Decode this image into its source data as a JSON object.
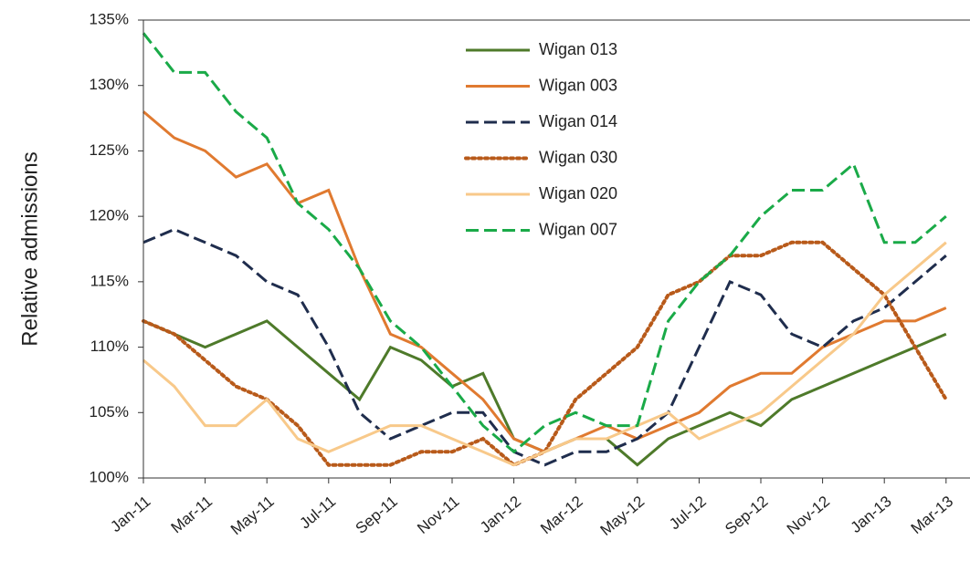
{
  "chart_data": {
    "type": "line",
    "y_label": "Relative admissions",
    "categories": [
      "Jan-11",
      null,
      "Mar-11",
      null,
      "May-11",
      null,
      "Jul-11",
      null,
      "Sep-11",
      null,
      "Nov-11",
      null,
      "Jan-12",
      null,
      "Mar-12",
      null,
      "May-12",
      null,
      "Jul-12",
      null,
      "Sep-12",
      null,
      "Nov-12",
      null,
      "Jan-13",
      null,
      "Mar-13"
    ],
    "series": [
      {
        "name": "Wigan 013",
        "color": "#4e7a2a",
        "dash": "solid",
        "values": [
          112,
          111,
          110,
          111,
          112,
          110,
          108,
          106,
          110,
          109,
          107,
          108,
          103,
          102,
          103,
          103,
          101,
          103,
          104,
          105,
          104,
          106,
          107,
          108,
          109,
          110,
          111
        ]
      },
      {
        "name": "Wigan 003",
        "color": "#e07a30",
        "dash": "solid",
        "values": [
          128,
          126,
          125,
          123,
          124,
          121,
          122,
          116,
          111,
          110,
          108,
          106,
          103,
          102,
          103,
          104,
          103,
          104,
          105,
          107,
          108,
          108,
          110,
          111,
          112,
          112,
          113
        ]
      },
      {
        "name": "Wigan 014",
        "color": "#1f2d4d",
        "dash": "dashed",
        "values": [
          118,
          119,
          118,
          117,
          115,
          114,
          110,
          105,
          103,
          104,
          105,
          105,
          102,
          101,
          102,
          102,
          103,
          105,
          110,
          115,
          114,
          111,
          110,
          112,
          113,
          115,
          117
        ]
      },
      {
        "name": "Wigan 030",
        "color": "#b85a1a",
        "dash": "dotted",
        "values": [
          112,
          111,
          109,
          107,
          106,
          104,
          101,
          101,
          101,
          102,
          102,
          103,
          101,
          102,
          106,
          108,
          110,
          114,
          115,
          117,
          117,
          118,
          118,
          116,
          114,
          110,
          106
        ]
      },
      {
        "name": "Wigan 020",
        "color": "#f8c98a",
        "dash": "solid",
        "values": [
          109,
          107,
          104,
          104,
          106,
          103,
          102,
          103,
          104,
          104,
          103,
          102,
          101,
          102,
          103,
          103,
          104,
          105,
          103,
          104,
          105,
          107,
          109,
          111,
          114,
          116,
          118
        ]
      },
      {
        "name": "Wigan 007",
        "color": "#1aaa48",
        "dash": "dashed",
        "values": [
          134,
          131,
          131,
          128,
          126,
          121,
          119,
          116,
          112,
          110,
          107,
          104,
          102,
          104,
          105,
          104,
          104,
          112,
          115,
          117,
          120,
          122,
          122,
          124,
          118,
          118,
          120
        ]
      }
    ],
    "ylim": [
      100,
      135
    ],
    "yticks": [
      {
        "value": 100,
        "label": "100%"
      },
      {
        "value": 105,
        "label": "105%"
      },
      {
        "value": 110,
        "label": "110%"
      },
      {
        "value": 115,
        "label": "115%"
      },
      {
        "value": 120,
        "label": "120%"
      },
      {
        "value": 125,
        "label": "125%"
      },
      {
        "value": 130,
        "label": "130%"
      },
      {
        "value": 135,
        "label": "135%"
      }
    ],
    "grid": false,
    "legend": "top-center"
  }
}
